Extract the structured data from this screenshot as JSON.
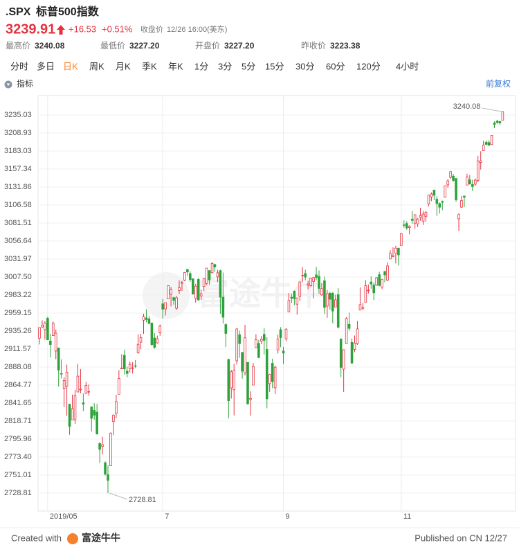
{
  "header": {
    "symbol": ".SPX",
    "name": "标普500指数",
    "price": "3239.91",
    "change": "+16.53",
    "change_pct": "+0.51%",
    "status_label": "收盘价",
    "status_time": "12/26 16:00(美东)",
    "stats": [
      {
        "label": "最高价",
        "value": "3240.08"
      },
      {
        "label": "最低价",
        "value": "3227.20"
      },
      {
        "label": "开盘价",
        "value": "3227.20"
      },
      {
        "label": "昨收价",
        "value": "3223.38"
      }
    ],
    "tabs": [
      "分时",
      "多日",
      "日K",
      "周K",
      "月K",
      "季K",
      "年K",
      "1分",
      "3分",
      "5分",
      "15分",
      "30分",
      "60分",
      "120分",
      "4小时"
    ],
    "active_tab": 2,
    "indicator": "指标",
    "adjust": "前复权"
  },
  "chart_data": {
    "type": "candlestick",
    "log_scale": true,
    "grid": true,
    "up_color": "#e5323e",
    "down_color": "#2ea23a",
    "ylim": [
      2706.8,
      3263.4
    ],
    "yticks": [
      {
        "value": 3235.03,
        "label": "3235.03"
      },
      {
        "value": 3208.93,
        "label": "3208.93"
      },
      {
        "value": 3183.03,
        "label": "3183.03"
      },
      {
        "value": 3157.34,
        "label": "3157.34"
      },
      {
        "value": 3131.86,
        "label": "3131.86"
      },
      {
        "value": 3106.58,
        "label": "3106.58"
      },
      {
        "value": 3081.51,
        "label": "3081.51"
      },
      {
        "value": 3056.64,
        "label": "3056.64"
      },
      {
        "value": 3031.97,
        "label": "3031.97"
      },
      {
        "value": 3007.5,
        "label": "3007.50"
      },
      {
        "value": 2983.22,
        "label": "2983.22"
      },
      {
        "value": 2959.15,
        "label": "2959.15"
      },
      {
        "value": 2935.26,
        "label": "2935.26"
      },
      {
        "value": 2911.57,
        "label": "2911.57"
      },
      {
        "value": 2888.08,
        "label": "2888.08"
      },
      {
        "value": 2864.77,
        "label": "2864.77"
      },
      {
        "value": 2841.65,
        "label": "2841.65"
      },
      {
        "value": 2818.71,
        "label": "2818.71"
      },
      {
        "value": 2795.96,
        "label": "2795.96"
      },
      {
        "value": 2773.4,
        "label": "2773.40"
      },
      {
        "value": 2751.01,
        "label": "2751.01"
      },
      {
        "value": 2728.81,
        "label": "2728.81"
      }
    ],
    "xlim": [
      -0.5,
      173.7
    ],
    "xticks": [
      {
        "value": 3,
        "label": "2019/05"
      },
      {
        "value": 45,
        "label": "7"
      },
      {
        "value": 89,
        "label": "9"
      },
      {
        "value": 132,
        "label": "11"
      }
    ],
    "annotations": [
      3240.08,
      2728.81
    ],
    "open": [
      2925.8,
      2940.6,
      2937.1,
      2952.3,
      2922.2,
      2929.2,
      2908.9,
      2913.0,
      2879.6,
      2859.8,
      2863.1,
      2840.2,
      2820.1,
      2820.4,
      2855.8,
      2858.6,
      2841.9,
      2854.0,
      2856.1,
      2836.7,
      2832.4,
      2830.0,
      2790.3,
      2786.9,
      2766.2,
      2751.5,
      2762.6,
      2818.1,
      2828.5,
      2852.9,
      2885.8,
      2903.3,
      2882.7,
      2886.2,
      2886.8,
      2889.8,
      2906.7,
      2920.6,
      2949.6,
      2952.7,
      2951.4,
      2945.8,
      2926.1,
      2919.7,
      2932.9,
      2971.4,
      2964.7,
      2978.1,
      2984.3,
      2979.8,
      2965.5,
      2989.3,
      2999.6,
      3003.4,
      3017.8,
      3012.1,
      3005.1,
      2978.9,
      3004.3,
      2981.9,
      2994.7,
      2998.8,
      3016.3,
      3013.3,
      3024.5,
      3007.7,
      3016.2,
      2980.3,
      2943.9,
      2898.1,
      2861.2,
      2858.7,
      2896.2,
      2930.5,
      2907.1,
      2880.7,
      2894.2,
      2846.2,
      2864.7,
      2913.5,
      2919.0,
      2922.0,
      2930.9,
      2911.1,
      2866.7,
      2893.1,
      2861.3,
      2910.4,
      2937.1,
      2909.0,
      2924.7,
      2960.6,
      2980.3,
      2988.4,
      2971.0,
      2981.4,
      3009.1,
      3012.2,
      2996.4,
      2995.7,
      3001.5,
      3010.4,
      3008.4,
      2983.5,
      3002.4,
      2968.4,
      2985.7,
      2985.5,
      2967.1,
      2983.7,
      2924.8,
      2885.4,
      2918.6,
      2944.2,
      2920.4,
      2911.1,
      2918.6,
      2963.1,
      2965.8,
      2973.6,
      2989.7,
      3000.8,
      2996.8,
      2996.5,
      3010.7,
      2994.0,
      3014.8,
      3003.3,
      3032.1,
      3035.4,
      3039.7,
      3046.9,
      3050.7,
      3078.96,
      3080.8,
      3075.1,
      3087.0,
      3081.2,
      3080.3,
      3089.3,
      3084.2,
      3090.8,
      3107.9,
      3117.9,
      3127.5,
      3114.7,
      3108.5,
      3111.4,
      3117.4,
      3134.9,
      3145.5,
      3147.2,
      3143.9,
      3087.4,
      3103.5,
      3119.2,
      3134.6,
      3141.9,
      3135.4,
      3135.8,
      3141.2,
      3166.7,
      3183.6,
      3195.4,
      3195.2,
      3192.3,
      3223.3,
      3226.1,
      3225.5,
      3227.2
    ],
    "high": [
      2939.9,
      2949.5,
      2948.2,
      2954.1,
      2931.7,
      2947.9,
      2937.3,
      2913.0,
      2897.9,
      2875.0,
      2891.3,
      2840.2,
      2852.5,
      2858.7,
      2892.2,
      2885.5,
      2853.9,
      2868.9,
      2865.5,
      2836.7,
      2841.4,
      2840.5,
      2792.0,
      2799.0,
      2768.0,
      2763.1,
      2804.5,
      2827.3,
      2852.1,
      2884.0,
      2904.8,
      2910.6,
      2888.6,
      2895.2,
      2894.5,
      2897.3,
      2930.8,
      2931.7,
      2958.1,
      2964.2,
      2954.9,
      2946.5,
      2932.6,
      2929.3,
      2943.9,
      2977.9,
      2973.2,
      2995.8,
      2994.0,
      2980.8,
      2981.9,
      3002.9,
      3002.3,
      3013.9,
      3017.8,
      3015.0,
      3005.3,
      2998.3,
      3006.0,
      2990.7,
      3005.9,
      3019.6,
      3016.3,
      3027.98,
      3025.6,
      3017.2,
      3017.4,
      3013.6,
      2945.5,
      2898.1,
      2884.4,
      2892.2,
      2938.7,
      2935.8,
      2907.6,
      2943.3,
      2894.2,
      2856.7,
      2893.6,
      2931.0,
      2923.6,
      2928.7,
      2939.1,
      2927.0,
      2879.3,
      2898.8,
      2890.0,
      2930.5,
      2940.4,
      2914.4,
      2938.8,
      2985.9,
      2985.0,
      2989.4,
      2979.4,
      3000.9,
      3020.7,
      3017.3,
      3002.2,
      3006.2,
      3007.8,
      3021.2,
      3016.4,
      2999.2,
      3007.98,
      2989.8,
      2987.3,
      2987.3,
      2983.8,
      2992.5,
      2924.8,
      2911.1,
      2953.7,
      2959.8,
      2925.5,
      2929.3,
      2948.5,
      2993.3,
      2972.8,
      3003.3,
      2997.5,
      3008.3,
      3000.0,
      3007.3,
      3014.6,
      3004.8,
      3016.1,
      3027.4,
      3044.1,
      3047.9,
      3050.1,
      3046.9,
      3066.9,
      3085.2,
      3083.95,
      3078.3,
      3097.8,
      3093.1,
      3088.3,
      3102.6,
      3098.1,
      3098.2,
      3120.5,
      3124.2,
      3127.6,
      3118.97,
      3110.1,
      3112.9,
      3133.8,
      3142.7,
      3154.3,
      3150.3,
      3144.3,
      3094.97,
      3119.4,
      3119.4,
      3150.6,
      3148.9,
      3142.1,
      3143.98,
      3176.3,
      3182.7,
      3197.7,
      3198.2,
      3198.5,
      3205.5,
      3225.7,
      3227.8,
      3226.4,
      3240.08
    ],
    "low": [
      2917.6,
      2939.4,
      2924.1,
      2923.4,
      2900.5,
      2929.2,
      2898.2,
      2862.6,
      2873.3,
      2836.4,
      2825.4,
      2801.4,
      2820.1,
      2815.1,
      2855.8,
      2854.2,
      2831.3,
      2854.0,
      2851.1,
      2805.5,
      2820.2,
      2801.6,
      2766.1,
      2776.7,
      2750.5,
      2728.81,
      2762.6,
      2800.9,
      2822.5,
      2852.9,
      2885.5,
      2878.5,
      2874.7,
      2881.0,
      2879.6,
      2886.9,
      2905.4,
      2911.4,
      2931.5,
      2946.9,
      2944.1,
      2916.0,
      2912.0,
      2918.6,
      2929.1,
      2952.2,
      2955.9,
      2977.9,
      2967.97,
      2970.1,
      2963.4,
      2984.6,
      2988.8,
      3001.9,
      3008.8,
      3001.2,
      2984.3,
      2973.1,
      2975.9,
      2976.7,
      2988.6,
      2996.8,
      2997.2,
      3012.6,
      3014.5,
      3000.9,
      2958.1,
      2945.2,
      2914.1,
      2822.1,
      2847.4,
      2825.7,
      2891.2,
      2900.2,
      2873.1,
      2877.1,
      2839.6,
      2825.5,
      2864.7,
      2913.5,
      2899.6,
      2917.9,
      2904.5,
      2834.97,
      2856.0,
      2860.6,
      2853.1,
      2905.7,
      2914.0,
      2891.9,
      2921.9,
      2960.6,
      2972.5,
      2969.4,
      2957.0,
      2975.3,
      3000.9,
      3002.9,
      2990.7,
      2993.7,
      2978.6,
      3003.2,
      2984.7,
      2982.2,
      2957.7,
      2952.9,
      2963.7,
      2945.5,
      2967.1,
      2938.7,
      2874.9,
      2855.9,
      2918.6,
      2935.7,
      2892.7,
      2907.4,
      2917.1,
      2963.1,
      2962.9,
      2973.6,
      2985.2,
      2991.8,
      2976.3,
      2995.4,
      2995.0,
      2991.2,
      3000.4,
      3001.9,
      3032.1,
      3034.8,
      3025.96,
      3023.2,
      3050.7,
      3074.9,
      3072.2,
      3065.9,
      3080.2,
      3073.6,
      3075.8,
      3084.7,
      3078.8,
      3083.3,
      3104.6,
      3112.1,
      3113.5,
      3091.4,
      3094.6,
      3099.3,
      3117.4,
      3131.0,
      3143.4,
      3139.3,
      3110.8,
      3070.3,
      3102.5,
      3103.8,
      3134.6,
      3135.5,
      3126.1,
      3133.2,
      3138.5,
      3156.5,
      3183.6,
      3191.0,
      3191.1,
      3192.3,
      3216.0,
      3222.3,
      3220.5,
      3227.2
    ],
    "close": [
      2939.9,
      2943.0,
      2945.8,
      2923.7,
      2917.5,
      2945.6,
      2932.5,
      2884.1,
      2879.4,
      2870.7,
      2881.4,
      2811.9,
      2834.4,
      2851.0,
      2876.3,
      2859.5,
      2840.2,
      2864.4,
      2856.3,
      2822.2,
      2826.1,
      2802.4,
      2783.0,
      2788.9,
      2752.1,
      2744.5,
      2803.3,
      2826.2,
      2843.5,
      2873.3,
      2886.7,
      2885.7,
      2879.8,
      2891.6,
      2887.0,
      2889.7,
      2917.8,
      2926.5,
      2954.2,
      2950.5,
      2945.4,
      2917.4,
      2913.8,
      2924.9,
      2941.8,
      2964.3,
      2973.0,
      2995.8,
      2990.4,
      2976.0,
      2979.6,
      2993.1,
      2999.9,
      3013.8,
      3014.3,
      3004.0,
      2984.4,
      2995.1,
      2976.6,
      2985.0,
      3005.5,
      3019.6,
      3003.7,
      3025.9,
      3021.0,
      3013.2,
      2980.4,
      2953.6,
      2932.1,
      2844.7,
      2881.8,
      2884.0,
      2938.1,
      2918.7,
      2882.7,
      2926.3,
      2840.6,
      2847.6,
      2888.7,
      2923.7,
      2900.5,
      2924.4,
      2923.0,
      2847.1,
      2878.4,
      2869.2,
      2887.9,
      2924.6,
      2926.5,
      2906.3,
      2937.8,
      2976.0,
      2978.7,
      2978.4,
      2979.4,
      3000.9,
      3009.6,
      3007.4,
      2998.0,
      3005.7,
      3006.7,
      3006.8,
      2992.1,
      2991.8,
      2966.6,
      2984.9,
      2977.6,
      2961.8,
      2976.7,
      2940.3,
      2887.6,
      2910.6,
      2952.0,
      2938.8,
      2893.1,
      2919.4,
      2938.1,
      2970.3,
      2966.2,
      2995.7,
      2989.7,
      2998.0,
      2986.2,
      3006.7,
      2996.0,
      3004.5,
      3010.3,
      3022.6,
      3039.4,
      3036.9,
      3046.8,
      3037.6,
      3066.9,
      3078.3,
      3074.6,
      3076.8,
      3085.2,
      3093.1,
      3087.0,
      3091.8,
      3094.0,
      3096.6,
      3120.5,
      3122.0,
      3120.2,
      3108.5,
      3103.5,
      3110.3,
      3133.6,
      3140.5,
      3153.6,
      3141.0,
      3113.9,
      3093.2,
      3112.8,
      3117.4,
      3145.9,
      3136.0,
      3132.5,
      3141.6,
      3168.6,
      3168.8,
      3191.5,
      3192.5,
      3191.1,
      3205.4,
      3221.2,
      3224.0,
      3223.4,
      3239.91
    ]
  },
  "footer": {
    "created_with": "Created with",
    "brand": "富途牛牛",
    "published": "Published on CN 12/27"
  }
}
